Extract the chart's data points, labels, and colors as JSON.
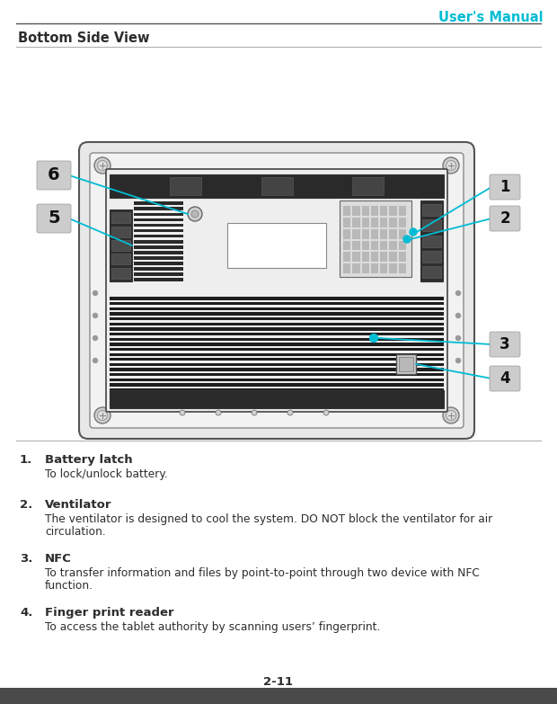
{
  "page_title": "User's Manual",
  "section_title": "Bottom Side View",
  "page_number": "2-11",
  "title_color": "#00bcd4",
  "text_color": "#2d2d2d",
  "bg_color": "#ffffff",
  "footer_bg": "#4a4a4a",
  "cyan_color": "#00bcd4",
  "dark_color": "#1a1a1a",
  "mid_color": "#666666",
  "light_color": "#cccccc",
  "items": [
    {
      "num": "1.",
      "bold": "Battery latch",
      "text": "To lock/unlock battery."
    },
    {
      "num": "2.",
      "bold": "Ventilator",
      "text": "The ventilator is designed to cool the system. DO NOT block the ventilator for air\ncirculation."
    },
    {
      "num": "3.",
      "bold": "NFC",
      "text": "To transfer information and files by point-to-point through two device with NFC\nfunction."
    },
    {
      "num": "4.",
      "bold": "Finger print reader",
      "text": "To access the tablet authority by scanning users’ fingerprint."
    }
  ]
}
